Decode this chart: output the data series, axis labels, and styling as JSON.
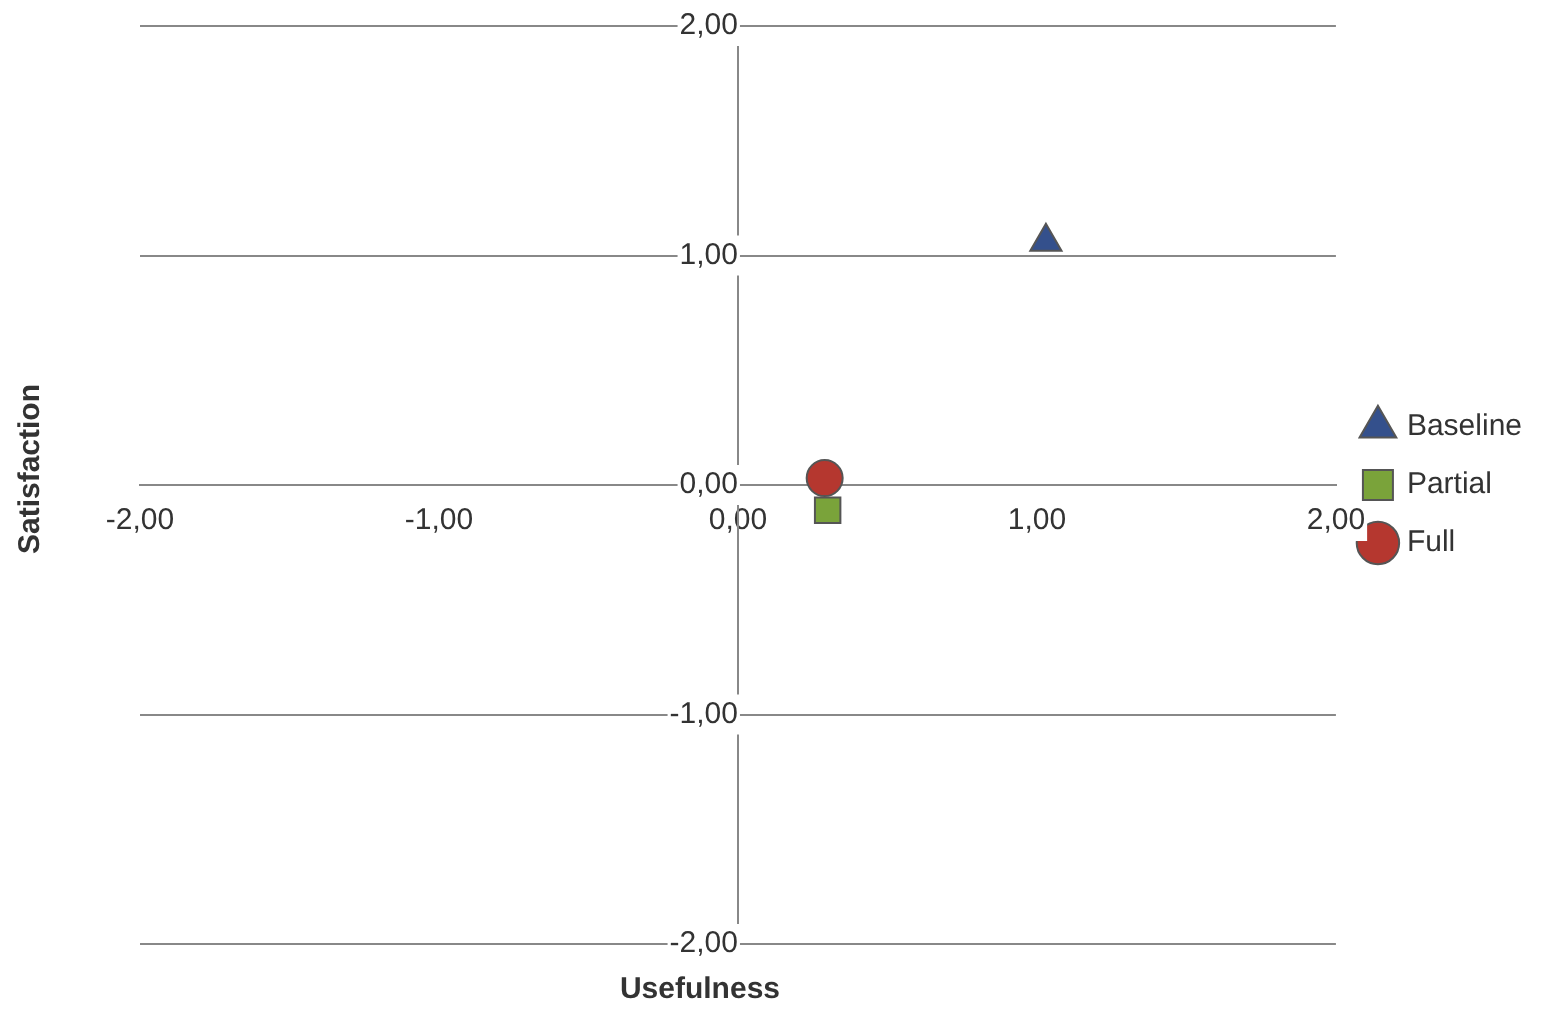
{
  "chart_data": {
    "type": "scatter",
    "xlabel": "Usefulness",
    "ylabel": "Satisfaction",
    "xlim": [
      -2,
      2
    ],
    "ylim": [
      -2,
      2
    ],
    "xticks": [
      {
        "value": -2,
        "label": "-2,00"
      },
      {
        "value": -1,
        "label": "-1,00"
      },
      {
        "value": 0,
        "label": "0,00"
      },
      {
        "value": 1,
        "label": "1,00"
      },
      {
        "value": 2,
        "label": "2,00"
      }
    ],
    "yticks": [
      {
        "value": -2,
        "label": "-2,00"
      },
      {
        "value": -1,
        "label": "-1,00"
      },
      {
        "value": 0,
        "label": "0,00"
      },
      {
        "value": 1,
        "label": "1,00"
      },
      {
        "value": 2,
        "label": "2,00"
      }
    ],
    "grid": "y",
    "legend": "right",
    "series": [
      {
        "name": "Baseline",
        "color": "#34508c",
        "marker": "triangle",
        "x": [
          1.03
        ],
        "values": [
          1.06
        ]
      },
      {
        "name": "Partial",
        "color": "#7aa33a",
        "marker": "square",
        "x": [
          0.3
        ],
        "values": [
          -0.11
        ]
      },
      {
        "name": "Full",
        "color": "#b5372f",
        "marker": "circle",
        "x": [
          0.29
        ],
        "values": [
          0.03
        ]
      }
    ]
  }
}
